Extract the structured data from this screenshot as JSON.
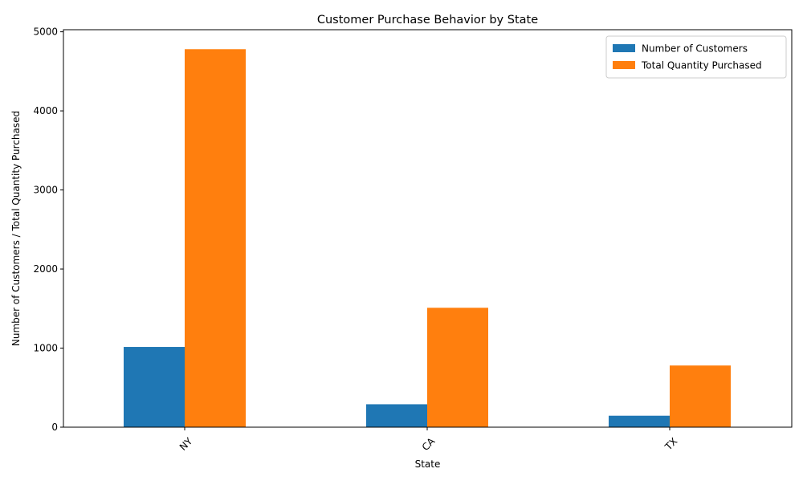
{
  "chart_data": {
    "type": "bar",
    "title": "Customer Purchase Behavior by State",
    "xlabel": "State",
    "ylabel": "Number of Customers / Total Quantity Purchased",
    "categories": [
      "NY",
      "CA",
      "TX"
    ],
    "series": [
      {
        "name": "Number of Customers",
        "values": [
          1015,
          290,
          145
        ],
        "color": "#1f77b4"
      },
      {
        "name": "Total Quantity Purchased",
        "values": [
          4780,
          1510,
          780
        ],
        "color": "#ff7f0e"
      }
    ],
    "ylim": [
      0,
      5000
    ],
    "yticks": [
      0,
      1000,
      2000,
      3000,
      4000,
      5000
    ],
    "grid": false,
    "legend_position": "top-right"
  }
}
